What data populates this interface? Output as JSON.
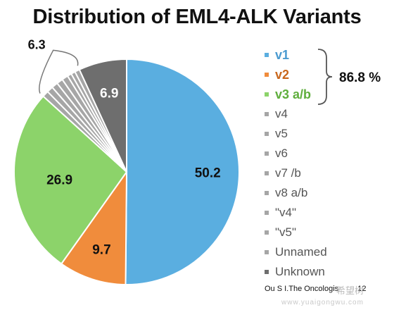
{
  "chart_data": {
    "type": "pie",
    "title": "Distribution of EML4-ALK Variants",
    "slices": [
      {
        "label": "v1",
        "value": 50.2,
        "color": "#5aaee0",
        "data_label": "50.2"
      },
      {
        "label": "v2",
        "value": 9.7,
        "color": "#f08c3c",
        "data_label": "9.7"
      },
      {
        "label": "v3 a/b",
        "value": 26.9,
        "color": "#8cd36a",
        "data_label": "26.9"
      },
      {
        "label": "v4",
        "value": 0.9,
        "color": "#a6a6a6",
        "data_label": ""
      },
      {
        "label": "v5",
        "value": 0.9,
        "color": "#a6a6a6",
        "data_label": ""
      },
      {
        "label": "v6",
        "value": 0.9,
        "color": "#a6a6a6",
        "data_label": ""
      },
      {
        "label": "v7 /b",
        "value": 0.9,
        "color": "#a6a6a6",
        "data_label": ""
      },
      {
        "label": "v8 a/b",
        "value": 0.9,
        "color": "#a6a6a6",
        "data_label": ""
      },
      {
        "label": "\"v4\"",
        "value": 0.6,
        "color": "#a6a6a6",
        "data_label": ""
      },
      {
        "label": "\"v5\"",
        "value": 0.6,
        "color": "#a6a6a6",
        "data_label": ""
      },
      {
        "label": "Unnamed",
        "value": 0.7,
        "color": "#a6a6a6",
        "data_label": ""
      },
      {
        "label": "Unknown",
        "value": 6.9,
        "color": "#6e6e6e",
        "data_label": "6.9"
      }
    ],
    "group_annotation": "6.3",
    "legend": {
      "position": "right",
      "entries": [
        {
          "label": "v1",
          "color": "#5aaee0",
          "bold": true
        },
        {
          "label": "v2",
          "color": "#f08c3c",
          "bold": true
        },
        {
          "label": "v3 a/b",
          "color": "#8cd36a",
          "bold": true
        },
        {
          "label": "v4",
          "color": "#a6a6a6",
          "bold": false
        },
        {
          "label": "v5",
          "color": "#a6a6a6",
          "bold": false
        },
        {
          "label": "v6",
          "color": "#a6a6a6",
          "bold": false
        },
        {
          "label": "v7 /b",
          "color": "#a6a6a6",
          "bold": false
        },
        {
          "label": "v8 a/b",
          "color": "#a6a6a6",
          "bold": false
        },
        {
          "label": "\"v4\"",
          "color": "#a6a6a6",
          "bold": false
        },
        {
          "label": "\"v5\"",
          "color": "#a6a6a6",
          "bold": false
        },
        {
          "label": "Unnamed",
          "color": "#a6a6a6",
          "bold": false
        },
        {
          "label": "Unknown",
          "color": "#6e6e6e",
          "bold": false
        }
      ],
      "bracket_total": "86.8 %"
    },
    "citation": "Ou S I.The Oncologis",
    "citation_suffix": "12"
  },
  "watermark": {
    "text_cn": "希望树",
    "url": "www.yuaigongwu.com"
  }
}
